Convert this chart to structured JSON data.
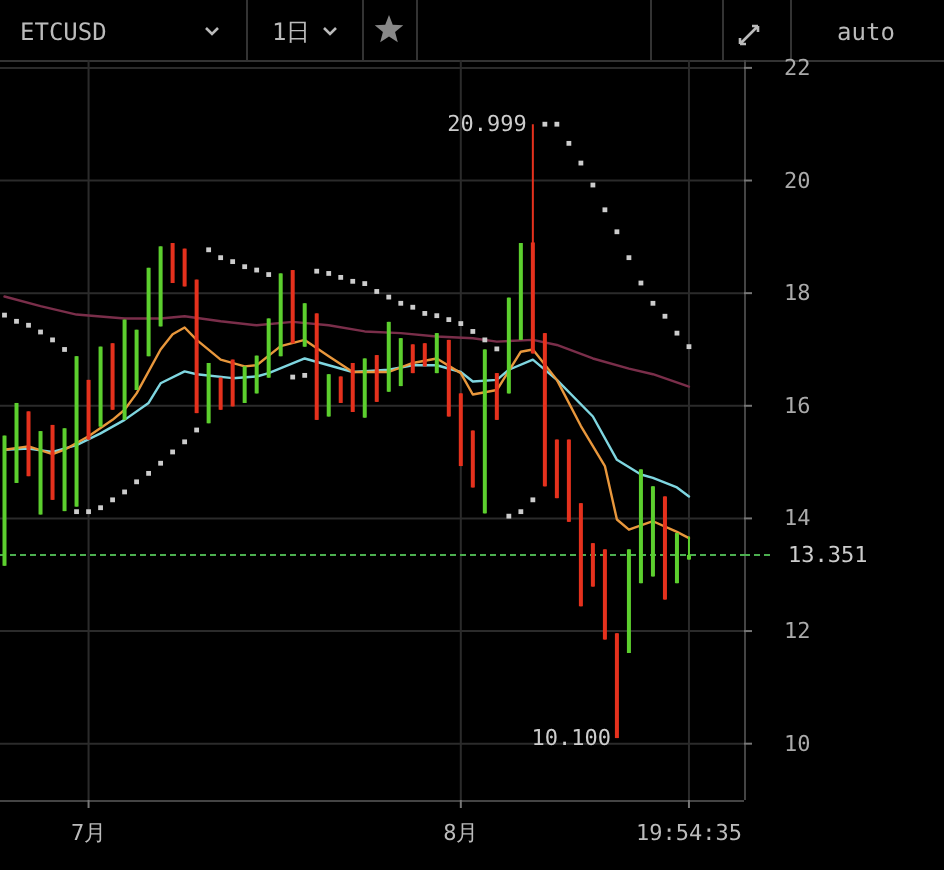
{
  "chart_data": {
    "type": "candlestick",
    "annotations": [
      "ETCUSD",
      "1日",
      "auto",
      {
        "text": "20.999",
        "x": "--08-07",
        "y": 20.999
      },
      {
        "text": "10.100",
        "x": "--08-14",
        "y": 10.1
      }
    ],
    "x": [
      "--06-24",
      "--06-25",
      "--06-26",
      "--06-27",
      "--06-28",
      "--06-29",
      "--06-30",
      "--07-01",
      "--07-02",
      "--07-03",
      "--07-04",
      "--07-05",
      "--07-06",
      "--07-07",
      "--07-08",
      "--07-09",
      "--07-10",
      "--07-11",
      "--07-12",
      "--07-13",
      "--07-14",
      "--07-15",
      "--07-16",
      "--07-17",
      "--07-18",
      "--07-19",
      "--07-20",
      "--07-21",
      "--07-22",
      "--07-23",
      "--07-24",
      "--07-25",
      "--07-26",
      "--07-27",
      "--07-28",
      "--07-29",
      "--07-30",
      "--07-31",
      "--08-01",
      "--08-02",
      "--08-03",
      "--08-04",
      "--08-05",
      "--08-06",
      "--08-07",
      "--08-08",
      "--08-09",
      "--08-10",
      "--08-11",
      "--08-12",
      "--08-13",
      "--08-14",
      "--08-15",
      "--08-16",
      "--08-17",
      "--08-18",
      "--08-19",
      "--08-20"
    ],
    "ohlc": [
      [
        13.16,
        15.47,
        13.16,
        15.47
      ],
      [
        14.63,
        16.05,
        14.63,
        16.05
      ],
      [
        15.9,
        15.9,
        14.75,
        14.75
      ],
      [
        14.07,
        15.55,
        14.07,
        15.55
      ],
      [
        15.66,
        15.66,
        14.33,
        14.33
      ],
      [
        14.13,
        15.6,
        14.13,
        15.6
      ],
      [
        14.21,
        16.88,
        14.21,
        16.88
      ],
      [
        16.46,
        16.46,
        15.4,
        15.4
      ],
      [
        15.63,
        17.05,
        15.63,
        17.05
      ],
      [
        17.11,
        17.11,
        15.93,
        15.93
      ],
      [
        15.75,
        17.53,
        15.75,
        17.53
      ],
      [
        16.28,
        17.35,
        16.28,
        17.35
      ],
      [
        16.88,
        18.45,
        16.88,
        18.45
      ],
      [
        17.41,
        18.83,
        17.41,
        18.83
      ],
      [
        18.89,
        18.89,
        18.18,
        18.18
      ],
      [
        18.79,
        18.79,
        18.12,
        18.12
      ],
      [
        18.24,
        18.24,
        15.87,
        15.87
      ],
      [
        15.69,
        16.76,
        15.69,
        16.76
      ],
      [
        16.5,
        16.5,
        15.93,
        15.93
      ],
      [
        16.82,
        16.82,
        15.99,
        15.99
      ],
      [
        16.05,
        16.7,
        16.05,
        16.7
      ],
      [
        16.22,
        16.89,
        16.22,
        16.89
      ],
      [
        16.5,
        17.55,
        16.5,
        17.55
      ],
      [
        16.88,
        18.35,
        16.88,
        18.35
      ],
      [
        18.41,
        18.41,
        17.11,
        17.11
      ],
      [
        17.05,
        17.82,
        17.05,
        17.82
      ],
      [
        17.64,
        17.64,
        15.75,
        15.75
      ],
      [
        15.81,
        16.56,
        15.81,
        16.56
      ],
      [
        16.52,
        16.52,
        16.05,
        16.05
      ],
      [
        16.76,
        16.76,
        15.89,
        15.89
      ],
      [
        15.79,
        16.84,
        15.79,
        16.84
      ],
      [
        16.9,
        16.9,
        16.07,
        16.07
      ],
      [
        16.25,
        17.49,
        16.25,
        17.49
      ],
      [
        16.35,
        17.2,
        16.35,
        17.2
      ],
      [
        17.09,
        17.09,
        16.58,
        16.58
      ],
      [
        17.11,
        17.11,
        16.7,
        16.7
      ],
      [
        16.58,
        17.29,
        16.58,
        17.29
      ],
      [
        17.17,
        17.17,
        15.81,
        15.81
      ],
      [
        16.22,
        16.22,
        14.93,
        14.93
      ],
      [
        15.56,
        15.56,
        14.55,
        14.55
      ],
      [
        14.09,
        17.0,
        14.09,
        17.0
      ],
      [
        16.58,
        16.58,
        15.75,
        15.75
      ],
      [
        16.22,
        17.92,
        16.22,
        17.92
      ],
      [
        17.17,
        18.89,
        17.17,
        18.89
      ],
      [
        18.9,
        20.999,
        16.93,
        16.93
      ],
      [
        17.29,
        17.29,
        14.57,
        14.57
      ],
      [
        15.4,
        15.4,
        14.36,
        14.36
      ],
      [
        15.4,
        15.4,
        13.94,
        13.94
      ],
      [
        14.27,
        14.27,
        12.44,
        12.44
      ],
      [
        13.56,
        13.56,
        12.79,
        12.79
      ],
      [
        13.45,
        13.45,
        11.85,
        11.85
      ],
      [
        11.96,
        11.96,
        10.1,
        10.1
      ],
      [
        11.61,
        13.45,
        11.61,
        13.45
      ],
      [
        12.85,
        14.87,
        12.85,
        14.87
      ],
      [
        12.97,
        14.57,
        12.97,
        14.57
      ],
      [
        14.39,
        14.39,
        12.56,
        12.56
      ],
      [
        12.85,
        13.74,
        12.85,
        13.74
      ],
      [
        13.27,
        13.68,
        13.27,
        13.351
      ]
    ],
    "colors": [
      "#5ccf2e",
      "#5ccf2e",
      "#e5311d",
      "#5ccf2e",
      "#e5311d",
      "#5ccf2e",
      "#5ccf2e",
      "#e5311d",
      "#5ccf2e",
      "#e5311d",
      "#5ccf2e",
      "#5ccf2e",
      "#5ccf2e",
      "#5ccf2e",
      "#e5311d",
      "#e5311d",
      "#e5311d",
      "#5ccf2e",
      "#e5311d",
      "#e5311d",
      "#5ccf2e",
      "#5ccf2e",
      "#5ccf2e",
      "#5ccf2e",
      "#e5311d",
      "#5ccf2e",
      "#e5311d",
      "#5ccf2e",
      "#e5311d",
      "#e5311d",
      "#5ccf2e",
      "#e5311d",
      "#5ccf2e",
      "#5ccf2e",
      "#e5311d",
      "#e5311d",
      "#5ccf2e",
      "#e5311d",
      "#e5311d",
      "#e5311d",
      "#5ccf2e",
      "#e5311d",
      "#5ccf2e",
      "#5ccf2e",
      "#e5311d",
      "#e5311d",
      "#e5311d",
      "#e5311d",
      "#e5311d",
      "#e5311d",
      "#e5311d",
      "#e5311d",
      "#5ccf2e",
      "#5ccf2e",
      "#5ccf2e",
      "#e5311d",
      "#5ccf2e",
      "#5ccf2e"
    ],
    "series": [
      {
        "type": "line",
        "color": "#7a2e4a",
        "x": [
          "--06-24",
          "--06-27",
          "--06-30",
          "--07-04",
          "--07-07",
          "--07-09",
          "--07-12",
          "--07-15",
          "--07-18",
          "--07-21",
          "--07-24",
          "--07-27",
          "--07-30",
          "--08-02",
          "--08-04",
          "--08-07",
          "--08-09",
          "--08-12",
          "--08-15",
          "--08-17",
          "--08-20"
        ],
        "values": [
          17.94,
          17.77,
          17.62,
          17.55,
          17.55,
          17.59,
          17.5,
          17.43,
          17.49,
          17.43,
          17.32,
          17.29,
          17.23,
          17.2,
          17.14,
          17.17,
          17.08,
          16.84,
          16.66,
          16.56,
          16.34
        ]
      },
      {
        "type": "line",
        "color": "#7fd6e0",
        "x": [
          "--06-24",
          "--06-26",
          "--06-28",
          "--06-30",
          "--07-02",
          "--07-04",
          "--07-06",
          "--07-07",
          "--07-09",
          "--07-10",
          "--07-13",
          "--07-15",
          "--07-16",
          "--07-19",
          "--07-21",
          "--07-23",
          "--07-26",
          "--07-28",
          "--07-30",
          "--08-01",
          "--08-02",
          "--08-04",
          "--08-05",
          "--08-07",
          "--08-09",
          "--08-12",
          "--08-14",
          "--08-16",
          "--08-17",
          "--08-19",
          "--08-20"
        ],
        "values": [
          15.22,
          15.24,
          15.18,
          15.3,
          15.51,
          15.75,
          16.05,
          16.4,
          16.61,
          16.56,
          16.49,
          16.52,
          16.58,
          16.84,
          16.72,
          16.6,
          16.64,
          16.72,
          16.72,
          16.6,
          16.43,
          16.46,
          16.64,
          16.82,
          16.46,
          15.81,
          15.04,
          14.78,
          14.72,
          14.55,
          14.39
        ]
      },
      {
        "type": "line",
        "color": "#e8973c",
        "x": [
          "--06-24",
          "--06-26",
          "--06-28",
          "--06-29",
          "--07-01",
          "--07-03",
          "--07-04",
          "--07-05",
          "--07-07",
          "--07-08",
          "--07-09",
          "--07-10",
          "--07-12",
          "--07-14",
          "--07-15",
          "--07-17",
          "--07-19",
          "--07-21",
          "--07-23",
          "--07-26",
          "--07-28",
          "--07-30",
          "--08-01",
          "--08-02",
          "--08-04",
          "--08-06",
          "--08-07",
          "--08-09",
          "--08-11",
          "--08-13",
          "--08-14",
          "--08-15",
          "--08-17",
          "--08-19",
          "--08-20"
        ],
        "values": [
          15.22,
          15.28,
          15.14,
          15.22,
          15.46,
          15.75,
          15.93,
          16.22,
          17.0,
          17.27,
          17.39,
          17.17,
          16.82,
          16.7,
          16.72,
          17.06,
          17.17,
          16.88,
          16.6,
          16.6,
          16.76,
          16.84,
          16.58,
          16.2,
          16.28,
          16.96,
          17.0,
          16.46,
          15.64,
          14.93,
          13.98,
          13.8,
          13.95,
          13.76,
          13.65
        ]
      },
      {
        "type": "scatter",
        "color": "#cccccc",
        "marker": "square",
        "values": [
          17.61,
          17.5,
          17.43,
          17.31,
          17.17,
          17.0,
          14.12,
          14.12,
          14.19,
          14.33,
          14.47,
          14.65,
          14.8,
          14.98,
          15.18,
          15.36,
          15.57,
          18.77,
          18.63,
          18.56,
          18.47,
          18.41,
          18.33,
          null,
          16.51,
          16.54,
          18.39,
          18.35,
          18.28,
          18.21,
          18.17,
          18.03,
          17.93,
          17.82,
          17.75,
          17.64,
          17.6,
          17.53,
          17.46,
          17.32,
          17.17,
          17.01,
          14.04,
          14.12,
          14.33,
          21.0,
          21.0,
          20.66,
          20.31,
          19.92,
          19.48,
          19.09,
          18.63,
          18.18,
          17.82,
          17.59,
          17.29,
          17.05
        ]
      }
    ],
    "xlim": [
      "--06-23T15:00",
      "--08-24T14:00"
    ],
    "xticks": [
      {
        "value": "--07-01",
        "label": "7月"
      },
      {
        "value": "--08-01",
        "label": "8月"
      },
      {
        "value": "--08-20",
        "label": "19:54:35"
      }
    ],
    "ylim": [
      9.0,
      22.14
    ],
    "yticks": [
      10,
      12,
      14,
      16,
      18,
      20,
      22
    ],
    "grid": true,
    "ref_lines": [
      {
        "axis": "y",
        "value": 13.351,
        "label": "13.351",
        "color": "#4caf50",
        "line_style": "dashed"
      }
    ]
  }
}
